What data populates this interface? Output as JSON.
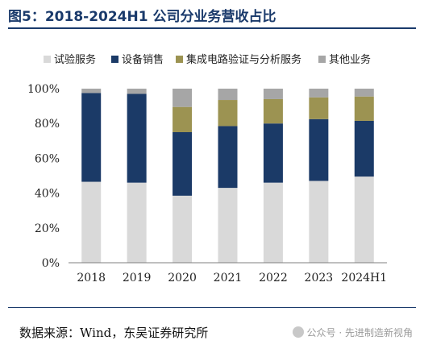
{
  "figure": {
    "title": "图5：2018-2024H1 公司分业务营收占比",
    "source": "数据来源：Wind，东吴证券研究所",
    "watermark": "公众号 · 先进制造新视角"
  },
  "chart_data": {
    "type": "bar",
    "stacked": true,
    "categories": [
      "2018",
      "2019",
      "2020",
      "2021",
      "2022",
      "2023",
      "2024H1"
    ],
    "series": [
      {
        "name": "试验服务",
        "color": "#d9d9d9",
        "values": [
          46.5,
          46,
          38.5,
          43,
          46,
          47,
          49.5
        ]
      },
      {
        "name": "设备销售",
        "color": "#1b3a67",
        "values": [
          51,
          51,
          36.5,
          35.5,
          34,
          35.5,
          32
        ]
      },
      {
        "name": "集成电路验证与分析服务",
        "color": "#9c9352",
        "values": [
          0,
          0,
          14.5,
          15,
          14,
          12.5,
          14
        ]
      },
      {
        "name": "其他业务",
        "color": "#a6a6a6",
        "values": [
          2.5,
          3,
          10.5,
          6.5,
          6,
          5,
          4.5
        ]
      }
    ],
    "y_ticks": [
      "0%",
      "20%",
      "40%",
      "60%",
      "80%",
      "100%"
    ],
    "ylim": [
      0,
      100
    ],
    "legend_position": "top",
    "grid": false
  }
}
